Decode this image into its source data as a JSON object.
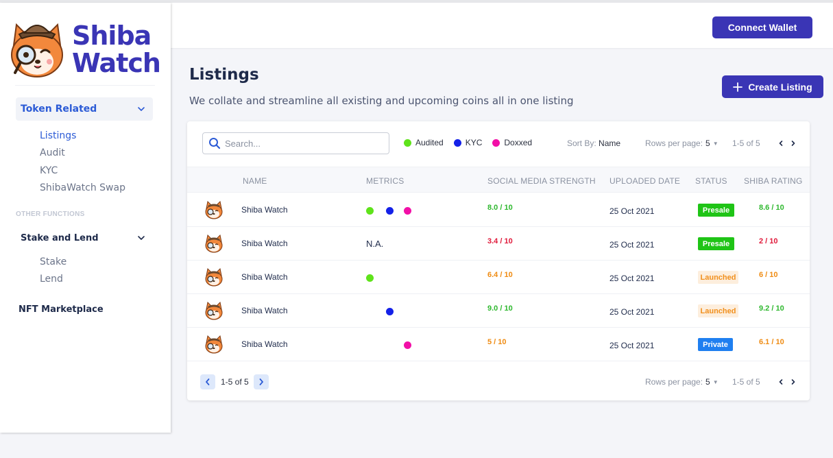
{
  "header": {
    "connect_wallet_label": "Connect Wallet"
  },
  "brand": {
    "line1": "Shiba",
    "line2": "Watch"
  },
  "sidebar": {
    "token_group_label": "Token Related",
    "token_items": [
      "Listings",
      "Audit",
      "KYC",
      "ShibaWatch Swap"
    ],
    "other_functions_label": "OTHER FUNCTIONS",
    "stake_group_label": "Stake and Lend",
    "stake_items": [
      "Stake",
      "Lend"
    ],
    "nft_label": "NFT Marketplace"
  },
  "page": {
    "title": "Listings",
    "subtitle": "We collate and streamline all existing and upcoming coins all in one listing",
    "create_label": "Create Listing"
  },
  "toolbar": {
    "search_placeholder": "Search...",
    "legend": [
      {
        "label": "Audited",
        "color": "#5fe31b"
      },
      {
        "label": "KYC",
        "color": "#1421e8"
      },
      {
        "label": "Doxxed",
        "color": "#f20fa7"
      }
    ],
    "sort_prefix": "Sort By:",
    "sort_value": "Name",
    "rows_per_page_label": "Rows per page:",
    "rows_per_page_value": "5",
    "range": "1-5 of 5"
  },
  "table": {
    "columns": [
      "NAME",
      "METRICS",
      "SOCIAL MEDIA STRENGTH",
      "UPLOADED DATE",
      "STATUS",
      "SHIBA RATING"
    ],
    "rows": [
      {
        "name": "Shiba Watch",
        "metrics": [
          "audited",
          "kyc",
          "doxxed"
        ],
        "metrics_text": "",
        "social": "8.0 / 10",
        "social_color": "#2eb82e",
        "date": "25 Oct 2021",
        "status": "Presale",
        "rating": "8.6 / 10",
        "rating_color": "#2eb82e"
      },
      {
        "name": "Shiba Watch",
        "metrics": [],
        "metrics_text": "N.A.",
        "social": "3.4 / 10",
        "social_color": "#e0193a",
        "date": "25 Oct 2021",
        "status": "Presale",
        "rating": "2 / 10",
        "rating_color": "#e0193a"
      },
      {
        "name": "Shiba Watch",
        "metrics": [
          "audited"
        ],
        "metrics_text": "",
        "social": "6.4 / 10",
        "social_color": "#ef8b12",
        "date": "25 Oct 2021",
        "status": "Launched",
        "rating": "6 / 10",
        "rating_color": "#ef8b12"
      },
      {
        "name": "Shiba Watch",
        "metrics": [
          "kyc"
        ],
        "metrics_text": "",
        "social": "9.0 / 10",
        "social_color": "#2eb82e",
        "date": "25 Oct 2021",
        "status": "Launched",
        "rating": "9.2 / 10",
        "rating_color": "#2eb82e"
      },
      {
        "name": "Shiba Watch",
        "metrics": [
          "doxxed"
        ],
        "metrics_text": "",
        "social": "5 / 10",
        "social_color": "#ef8b12",
        "date": "25 Oct 2021",
        "status": "Private",
        "rating": "6.1 / 10",
        "rating_color": "#ef8b12"
      }
    ]
  },
  "footer": {
    "range": "1-5 of 5"
  },
  "colors": {
    "accent": "#3a35b5",
    "link": "#2c5bd6"
  }
}
